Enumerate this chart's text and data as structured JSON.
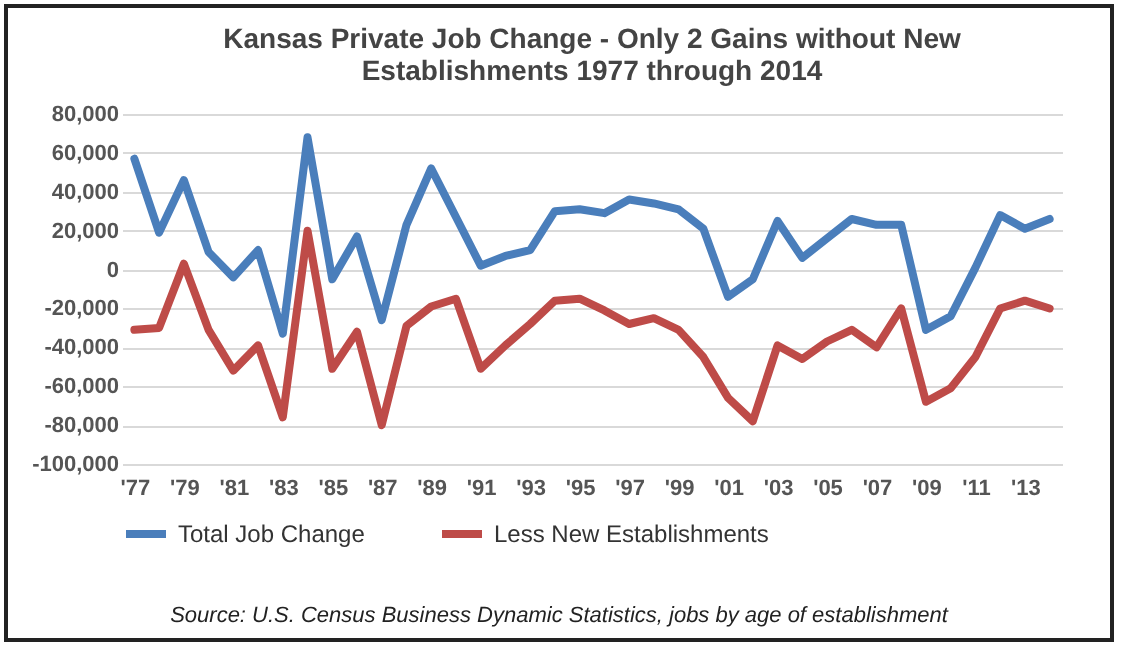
{
  "chart_data": {
    "type": "line",
    "title": "Kansas Private Job Change - Only 2 Gains without New Establishments  1977 through 2014",
    "categories": [
      "'77",
      null,
      "'79",
      null,
      "'81",
      null,
      "'83",
      null,
      "'85",
      null,
      "'87",
      null,
      "'89",
      null,
      "'91",
      null,
      "'93",
      null,
      "'95",
      null,
      "'97",
      null,
      "'99",
      null,
      "'01",
      null,
      "'03",
      null,
      "'05",
      null,
      "'07",
      null,
      "'09",
      null,
      "'11",
      null,
      "'13",
      null
    ],
    "series": [
      {
        "name": "Total Job Change",
        "color": "#4a7ebb",
        "values": [
          57000,
          19000,
          46000,
          9000,
          -4000,
          10000,
          -33000,
          68000,
          -5000,
          17000,
          -26000,
          23000,
          52000,
          27000,
          2000,
          7000,
          10000,
          30000,
          31000,
          29000,
          36000,
          34000,
          31000,
          21000,
          -14000,
          -5000,
          25000,
          6000,
          16000,
          26000,
          23000,
          23000,
          -31000,
          -24000,
          1000,
          28000,
          21000,
          26000
        ]
      },
      {
        "name": "Less New Establishments",
        "color": "#be4b48",
        "values": [
          -31000,
          -30000,
          3000,
          -31000,
          -52000,
          -39000,
          -76000,
          20000,
          -51000,
          -32000,
          -80000,
          -29000,
          -19000,
          -15000,
          -51000,
          -39000,
          -28000,
          -16000,
          -15000,
          -21000,
          -28000,
          -25000,
          -31000,
          -45000,
          -66000,
          -78000,
          -39000,
          -46000,
          -37000,
          -31000,
          -40000,
          -20000,
          -68000,
          -61000,
          -45000,
          -20000,
          -16000,
          -20000
        ]
      }
    ],
    "ylim": [
      -100000,
      80000
    ],
    "yticks": [
      {
        "value": -100000,
        "label": "-100,000"
      },
      {
        "value": -80000,
        "label": "-80,000"
      },
      {
        "value": -60000,
        "label": "-60,000"
      },
      {
        "value": -40000,
        "label": "-40,000"
      },
      {
        "value": -20000,
        "label": "-20,000"
      },
      0,
      {
        "value": 20000,
        "label": "20,000"
      },
      {
        "value": 40000,
        "label": "40,000"
      },
      {
        "value": 60000,
        "label": "60,000"
      },
      {
        "value": 80000,
        "label": "80,000"
      }
    ],
    "grid": "y",
    "legend": "bottom",
    "annotations": [
      "Source: U.S. Census Business Dynamic Statistics, jobs by age of establishment"
    ]
  }
}
